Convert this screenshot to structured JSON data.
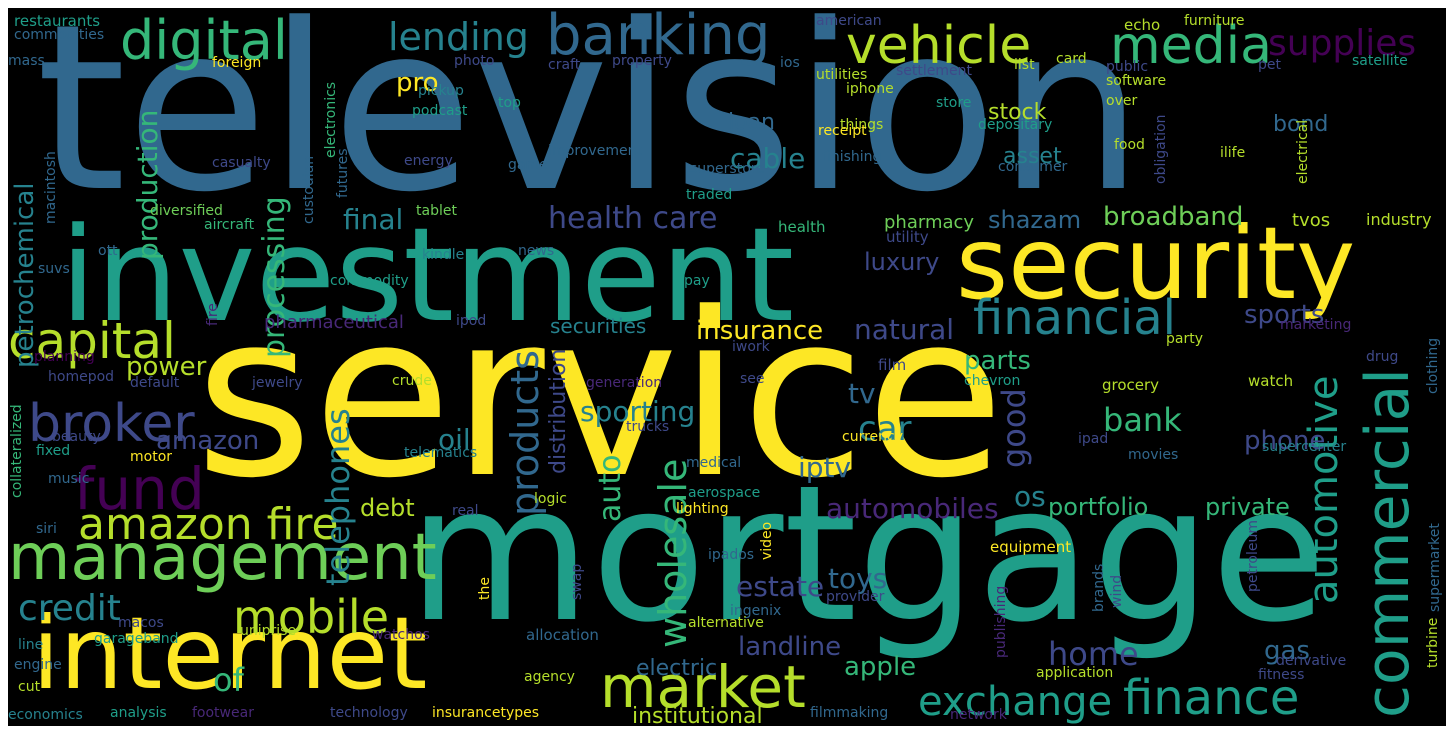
{
  "palette": {
    "background": "#000000",
    "yellow": "#fde725",
    "lime": "#b5de2b",
    "green": "#6ece58",
    "mint": "#35b779",
    "teal": "#1f9e89",
    "cyan": "#26828e",
    "blue": "#31688e",
    "indigo": "#3e4989",
    "violet": "#482878",
    "purple": "#440154"
  },
  "words": {
    "television": "television",
    "service": "service",
    "mortgage": "mortgage",
    "investment": "investment",
    "security": "security",
    "internet": "internet",
    "management": "management",
    "banking": "banking",
    "vehicle": "vehicle",
    "media": "media",
    "digital": "digital",
    "lending": "lending",
    "supplies": "supplies",
    "capital": "capital",
    "financial": "financial",
    "broker": "broker",
    "fund": "fund",
    "amazon_fire": "amazon fire",
    "mobile": "mobile",
    "market": "market",
    "exchange": "exchange",
    "finance": "finance",
    "commercial": "commercial",
    "automotive": "automotive",
    "credit": "credit",
    "health_care": "health care",
    "insurance": "insurance",
    "products": "products",
    "wholesale": "wholesale",
    "telephones": "telephones",
    "processing": "processing",
    "production": "production",
    "petrochemical": "petrochemical",
    "broadband": "broadband",
    "shazam": "shazam",
    "natural": "natural",
    "sports": "sports",
    "luxury": "luxury",
    "cable": "cable",
    "final": "final",
    "pro": "pro",
    "stock": "stock",
    "asset": "asset",
    "bond": "bond",
    "loan": "loan",
    "good": "good",
    "bank": "bank",
    "parts": "parts",
    "car": "car",
    "tv": "tv",
    "sporting": "sporting",
    "amazon": "amazon",
    "power": "power",
    "oil": "oil",
    "iptv": "iptv",
    "estate": "estate",
    "toys": "toys",
    "automobiles": "automobiles",
    "os": "os",
    "portfolio": "portfolio",
    "private": "private",
    "phone": "phone",
    "home": "home",
    "gas": "gas",
    "apple": "apple",
    "landline": "landline",
    "institutional": "institutional",
    "electric": "electric",
    "of": "of",
    "auto": "auto",
    "debt": "debt",
    "distribution": "distribution",
    "securities": "securities",
    "pharmaceutical": "pharmaceutical",
    "pharmacy": "pharmacy",
    "tvos": "tvos",
    "industry": "industry",
    "utility": "utility",
    "health": "health",
    "restaurants": "restaurants",
    "commodities": "commodities",
    "mass": "mass",
    "foreign": "foreign",
    "photo": "photo",
    "craft": "craft",
    "property": "property",
    "american": "american",
    "ios": "ios",
    "settlement": "settlement",
    "list": "list",
    "card": "card",
    "echo": "echo",
    "public": "public",
    "furniture": "furniture",
    "pet": "pet",
    "satellite": "satellite",
    "pickup": "pickup",
    "podcast": "podcast",
    "top": "top",
    "utilities": "utilities",
    "iphone": "iphone",
    "software": "software",
    "over": "over",
    "store": "store",
    "depositary": "depositary",
    "electronics": "electronics",
    "macintosh": "macintosh",
    "custodian": "custodian",
    "futures": "futures",
    "casualty": "casualty",
    "energy": "energy",
    "improvement": "improvement",
    "game": "game",
    "superstore": "superstore",
    "things": "things",
    "receipt": "receipt",
    "finishing": "finishing",
    "consumer": "consumer",
    "obligation": "obligation",
    "food": "food",
    "ilife": "ilife",
    "electrical": "electrical",
    "clothing": "clothing",
    "diversified": "diversified",
    "tablet": "tablet",
    "aircraft": "aircraft",
    "traded": "traded",
    "ott": "ott",
    "suvs": "suvs",
    "news": "news",
    "kindle": "kindle",
    "commodity": "commodity",
    "fire": "fire",
    "pay": "pay",
    "ipod": "ipod",
    "marketing": "marketing",
    "planning": "planning",
    "homepod": "homepod",
    "default": "default",
    "jewelry": "jewelry",
    "crude": "crude",
    "generation": "generation",
    "iwork": "iwork",
    "see": "see",
    "film": "film",
    "party": "party",
    "drug": "drug",
    "chevron": "chevron",
    "grocery": "grocery",
    "watch": "watch",
    "collateralized": "collateralized",
    "beauty": "beauty",
    "fixed": "fixed",
    "motor": "motor",
    "trucks": "trucks",
    "telematics": "telematics",
    "currency": "currency",
    "ipad": "ipad",
    "movies": "movies",
    "supercenter": "supercenter",
    "medical": "medical",
    "music": "music",
    "logic": "logic",
    "siri": "siri",
    "real": "real",
    "lighting": "lighting",
    "aerospace": "aerospace",
    "video": "video",
    "supermarket": "supermarket",
    "petroleum": "petroleum",
    "equipment": "equipment",
    "ipados": "ipados",
    "the": "the",
    "swap": "swap",
    "ingenix": "ingenix",
    "provider": "provider",
    "brands": "brands",
    "wind": "wind",
    "publishing": "publishing",
    "alternative": "alternative",
    "macos": "macos",
    "uniprise": "uniprise",
    "garageband": "garageband",
    "line": "line",
    "watchos": "watchos",
    "allocation": "allocation",
    "engine": "engine",
    "derivative": "derivative",
    "turbine": "turbine",
    "cut": "cut",
    "agency": "agency",
    "application": "application",
    "fitness": "fitness",
    "economics": "economics",
    "analysis": "analysis",
    "footwear": "footwear",
    "technology": "technology",
    "insurancetypes": "insurancetypes",
    "filmmaking": "filmmaking",
    "network": "network"
  }
}
